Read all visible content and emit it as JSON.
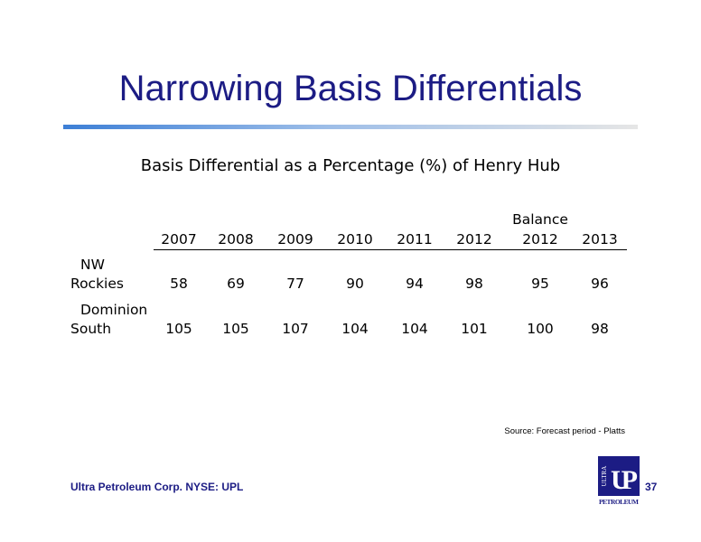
{
  "title": "Narrowing Basis Differentials",
  "subtitle": "Basis Differential as a Percentage (%) of Henry Hub",
  "table": {
    "columns": [
      [
        "2007"
      ],
      [
        "2008"
      ],
      [
        "2009"
      ],
      [
        "2010"
      ],
      [
        "2011"
      ],
      [
        "2012"
      ],
      [
        "Balance",
        "2012"
      ],
      [
        "2013"
      ]
    ],
    "rows": [
      {
        "label": [
          "NW",
          "Rockies"
        ],
        "values": [
          "58",
          "69",
          "77",
          "90",
          "94",
          "98",
          "95",
          "96"
        ]
      },
      {
        "label": [
          "Dominion",
          "South"
        ],
        "values": [
          "105",
          "105",
          "107",
          "104",
          "104",
          "101",
          "100",
          "98"
        ]
      }
    ]
  },
  "source": "Source: Forecast period - Platts",
  "footer": {
    "company": "Ultra Petroleum Corp. NYSE: UPL",
    "page": "37"
  },
  "logo": {
    "top": "ULTRA",
    "main": "UP",
    "bottom": "PETROLEUM"
  }
}
